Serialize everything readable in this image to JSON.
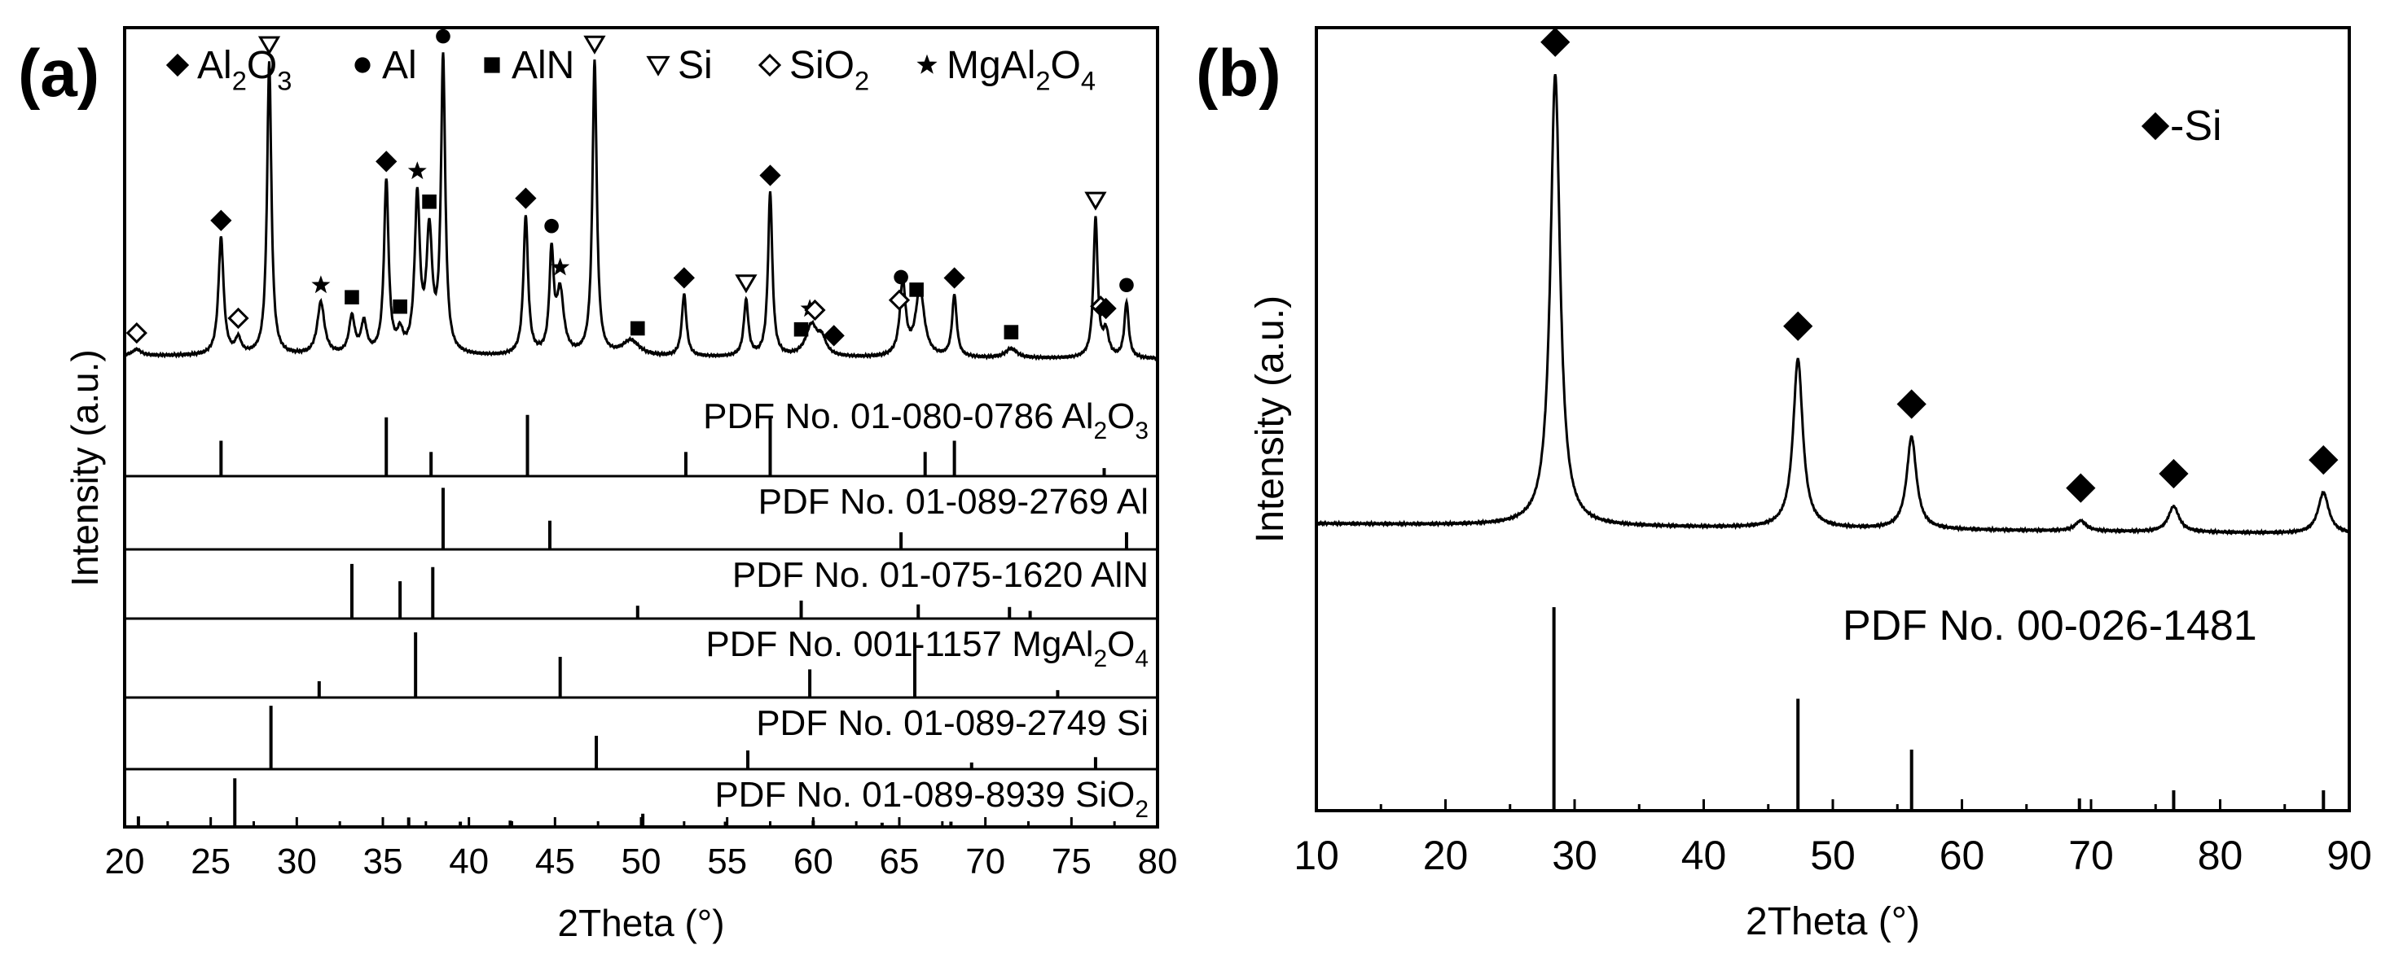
{
  "chart_data": [
    {
      "type": "line",
      "panel_label": "(a)",
      "xlabel": "2Theta (°)",
      "ylabel": "Intensity (a.u.)",
      "xlim": [
        20,
        80
      ],
      "xticks": [
        "20",
        "25",
        "30",
        "35",
        "40",
        "45",
        "50",
        "55",
        "60",
        "65",
        "70",
        "75",
        "80"
      ],
      "legend": [
        {
          "symbol": "diamond",
          "label": "Al",
          "sub": "2",
          "mid": "O",
          "sub2": "3"
        },
        {
          "symbol": "circle",
          "label": "Al"
        },
        {
          "symbol": "square",
          "label": "AlN"
        },
        {
          "symbol": "triangle",
          "label": "Si"
        },
        {
          "symbol": "diamond-open",
          "label": "SiO",
          "sub": "2"
        },
        {
          "symbol": "star",
          "label": "MgAl",
          "sub": "2",
          "mid": "O",
          "sub2": "4"
        }
      ],
      "pattern": {
        "baseline": 0.05,
        "peaks": [
          {
            "x": 20.7,
            "h": 0.02,
            "w": 0.3
          },
          {
            "x": 25.6,
            "h": 0.38,
            "w": 0.18
          },
          {
            "x": 26.6,
            "h": 0.05,
            "w": 0.2
          },
          {
            "x": 28.4,
            "h": 0.95,
            "w": 0.15
          },
          {
            "x": 31.4,
            "h": 0.17,
            "w": 0.25
          },
          {
            "x": 33.2,
            "h": 0.12,
            "w": 0.2
          },
          {
            "x": 33.9,
            "h": 0.1,
            "w": 0.2
          },
          {
            "x": 35.2,
            "h": 0.56,
            "w": 0.16
          },
          {
            "x": 36.0,
            "h": 0.06,
            "w": 0.2
          },
          {
            "x": 37.0,
            "h": 0.5,
            "w": 0.18
          },
          {
            "x": 37.7,
            "h": 0.38,
            "w": 0.2
          },
          {
            "x": 38.5,
            "h": 0.95,
            "w": 0.15
          },
          {
            "x": 43.3,
            "h": 0.45,
            "w": 0.16
          },
          {
            "x": 44.8,
            "h": 0.32,
            "w": 0.15
          },
          {
            "x": 45.3,
            "h": 0.2,
            "w": 0.25
          },
          {
            "x": 47.3,
            "h": 0.95,
            "w": 0.15
          },
          {
            "x": 49.4,
            "h": 0.05,
            "w": 0.6
          },
          {
            "x": 52.5,
            "h": 0.2,
            "w": 0.16
          },
          {
            "x": 56.1,
            "h": 0.18,
            "w": 0.16
          },
          {
            "x": 57.5,
            "h": 0.53,
            "w": 0.15
          },
          {
            "x": 59.9,
            "h": 0.1,
            "w": 0.4
          },
          {
            "x": 60.5,
            "h": 0.05,
            "w": 0.3
          },
          {
            "x": 65.2,
            "h": 0.24,
            "w": 0.2
          },
          {
            "x": 66.2,
            "h": 0.22,
            "w": 0.3
          },
          {
            "x": 68.2,
            "h": 0.2,
            "w": 0.16
          },
          {
            "x": 71.5,
            "h": 0.03,
            "w": 0.4
          },
          {
            "x": 76.4,
            "h": 0.45,
            "w": 0.15
          },
          {
            "x": 77.0,
            "h": 0.08,
            "w": 0.2
          },
          {
            "x": 78.2,
            "h": 0.18,
            "w": 0.15
          }
        ],
        "markers": [
          {
            "x": 20.7,
            "symbol": "diamond-open"
          },
          {
            "x": 25.6,
            "symbol": "diamond"
          },
          {
            "x": 26.6,
            "symbol": "diamond-open"
          },
          {
            "x": 28.4,
            "symbol": "triangle"
          },
          {
            "x": 31.4,
            "symbol": "star"
          },
          {
            "x": 33.2,
            "symbol": "square"
          },
          {
            "x": 35.2,
            "symbol": "diamond"
          },
          {
            "x": 36.0,
            "symbol": "square"
          },
          {
            "x": 37.0,
            "symbol": "star"
          },
          {
            "x": 37.7,
            "symbol": "square"
          },
          {
            "x": 38.5,
            "symbol": "circle"
          },
          {
            "x": 43.3,
            "symbol": "diamond"
          },
          {
            "x": 44.8,
            "symbol": "circle"
          },
          {
            "x": 45.3,
            "symbol": "star"
          },
          {
            "x": 47.3,
            "symbol": "triangle"
          },
          {
            "x": 49.8,
            "symbol": "square"
          },
          {
            "x": 52.5,
            "symbol": "diamond"
          },
          {
            "x": 56.1,
            "symbol": "triangle"
          },
          {
            "x": 57.5,
            "symbol": "diamond"
          },
          {
            "x": 59.3,
            "symbol": "square"
          },
          {
            "x": 59.8,
            "symbol": "star"
          },
          {
            "x": 60.1,
            "symbol": "diamond-open"
          },
          {
            "x": 61.2,
            "symbol": "diamond"
          },
          {
            "x": 65.0,
            "symbol": "diamond-open"
          },
          {
            "x": 65.1,
            "symbol": "circle"
          },
          {
            "x": 66.0,
            "symbol": "square"
          },
          {
            "x": 68.2,
            "symbol": "diamond"
          },
          {
            "x": 71.5,
            "symbol": "square"
          },
          {
            "x": 76.4,
            "symbol": "triangle"
          },
          {
            "x": 76.7,
            "symbol": "diamond-open"
          },
          {
            "x": 77.0,
            "symbol": "diamond"
          },
          {
            "x": 78.2,
            "symbol": "circle"
          }
        ]
      },
      "references": [
        {
          "label": "PDF No. 01-080-0786  Al",
          "sub": "2",
          "mid": "O",
          "sub2": "3",
          "lines": [
            {
              "x": 25.6,
              "h": 0.44
            },
            {
              "x": 35.2,
              "h": 0.73
            },
            {
              "x": 37.8,
              "h": 0.3
            },
            {
              "x": 43.4,
              "h": 0.76
            },
            {
              "x": 52.6,
              "h": 0.3
            },
            {
              "x": 57.5,
              "h": 0.73
            },
            {
              "x": 66.5,
              "h": 0.3
            },
            {
              "x": 68.2,
              "h": 0.44
            },
            {
              "x": 76.9,
              "h": 0.1
            }
          ]
        },
        {
          "label": "PDF No. 01-089-2769  Al",
          "lines": [
            {
              "x": 38.5,
              "h": 0.9
            },
            {
              "x": 44.7,
              "h": 0.42
            },
            {
              "x": 65.1,
              "h": 0.25
            },
            {
              "x": 78.2,
              "h": 0.25
            }
          ]
        },
        {
          "label": "PDF No. 01-075-1620  AlN",
          "lines": [
            {
              "x": 33.2,
              "h": 0.85
            },
            {
              "x": 36.0,
              "h": 0.58
            },
            {
              "x": 37.9,
              "h": 0.8
            },
            {
              "x": 49.8,
              "h": 0.2
            },
            {
              "x": 59.3,
              "h": 0.28
            },
            {
              "x": 66.1,
              "h": 0.22
            },
            {
              "x": 71.4,
              "h": 0.18
            },
            {
              "x": 72.6,
              "h": 0.12
            }
          ]
        },
        {
          "label": "PDF No. 001-1157  MgAl",
          "sub": "2",
          "mid": "O",
          "sub2": "4",
          "lines": [
            {
              "x": 31.3,
              "h": 0.22
            },
            {
              "x": 36.9,
              "h": 0.88
            },
            {
              "x": 45.3,
              "h": 0.55
            },
            {
              "x": 59.8,
              "h": 0.38
            },
            {
              "x": 65.9,
              "h": 0.88
            },
            {
              "x": 74.2,
              "h": 0.1
            }
          ]
        },
        {
          "label": "PDF No. 01-089-2749  Si",
          "lines": [
            {
              "x": 28.5,
              "h": 0.95
            },
            {
              "x": 47.4,
              "h": 0.5
            },
            {
              "x": 56.2,
              "h": 0.28
            },
            {
              "x": 69.2,
              "h": 0.1
            },
            {
              "x": 76.4,
              "h": 0.18
            }
          ]
        },
        {
          "label": "PDF No. 01-089-8939  SiO",
          "sub": "2",
          "lines": [
            {
              "x": 20.8,
              "h": 0.2
            },
            {
              "x": 26.4,
              "h": 0.92
            },
            {
              "x": 36.5,
              "h": 0.18
            },
            {
              "x": 39.5,
              "h": 0.1
            },
            {
              "x": 42.4,
              "h": 0.12
            },
            {
              "x": 50.1,
              "h": 0.25
            },
            {
              "x": 54.9,
              "h": 0.1
            },
            {
              "x": 60.0,
              "h": 0.12
            },
            {
              "x": 64.0,
              "h": 0.08
            },
            {
              "x": 68.0,
              "h": 0.1
            }
          ]
        }
      ]
    },
    {
      "type": "line",
      "panel_label": "(b)",
      "xlabel": "2Theta (°)",
      "ylabel": "Intensity (a.u.)",
      "xlim": [
        10,
        90
      ],
      "xticks": [
        "10",
        "20",
        "30",
        "40",
        "50",
        "60",
        "70",
        "80",
        "90"
      ],
      "legend": [
        {
          "symbol": "diamond",
          "label": "-Si"
        }
      ],
      "pattern": {
        "baseline": 0.3,
        "peaks": [
          {
            "x": 28.5,
            "h": 0.88,
            "w": 0.45
          },
          {
            "x": 47.3,
            "h": 0.33,
            "w": 0.45
          },
          {
            "x": 56.1,
            "h": 0.18,
            "w": 0.45
          },
          {
            "x": 69.2,
            "h": 0.02,
            "w": 0.5
          },
          {
            "x": 76.4,
            "h": 0.05,
            "w": 0.5
          },
          {
            "x": 88.0,
            "h": 0.08,
            "w": 0.5
          }
        ],
        "markers": [
          {
            "x": 28.5,
            "symbol": "diamond"
          },
          {
            "x": 47.3,
            "symbol": "diamond"
          },
          {
            "x": 56.1,
            "symbol": "diamond"
          },
          {
            "x": 69.2,
            "symbol": "diamond"
          },
          {
            "x": 76.4,
            "symbol": "diamond"
          },
          {
            "x": 88.0,
            "symbol": "diamond"
          }
        ]
      },
      "references": [
        {
          "label": "PDF No. 00-026-1481",
          "lines": [
            {
              "x": 28.4,
              "h": 1.0
            },
            {
              "x": 47.3,
              "h": 0.55
            },
            {
              "x": 56.1,
              "h": 0.3
            },
            {
              "x": 69.1,
              "h": 0.06
            },
            {
              "x": 76.4,
              "h": 0.1
            },
            {
              "x": 88.0,
              "h": 0.1
            }
          ]
        }
      ]
    }
  ]
}
